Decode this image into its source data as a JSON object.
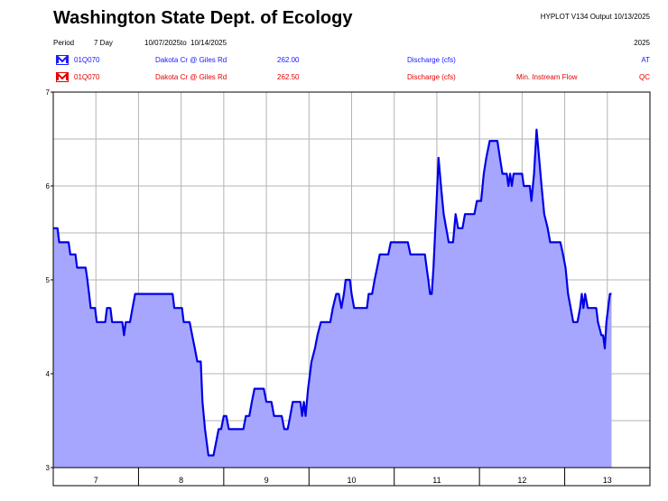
{
  "header": {
    "title": "Washington State Dept. of Ecology",
    "hyplot": "HYPLOT V134  Output 10/13/2025",
    "period_label": "Period",
    "period_value": "7 Day",
    "date_start": "10/07/2025",
    "date_to": "to",
    "date_end": "10/14/2025",
    "year": "2025"
  },
  "series_info": [
    {
      "station": "01Q070",
      "site": "Dakota Cr @ Giles Rd",
      "code": "262.00",
      "param": "Discharge (cfs)",
      "note": "",
      "flag": "AT",
      "color": "#1a1aff"
    },
    {
      "station": "01Q070",
      "site": "Dakota Cr @ Giles Rd",
      "code": "262.50",
      "param": "Discharge (cfs)",
      "note": "Min. Instream Flow",
      "flag": "QC",
      "color": "#e60000"
    }
  ],
  "chart_data": {
    "type": "area",
    "title": "",
    "xlabel": "",
    "ylabel": "",
    "xlim": [
      6.5,
      13.5
    ],
    "ylim": [
      3,
      7
    ],
    "x_ticks": [
      7,
      8,
      9,
      10,
      11,
      12,
      13
    ],
    "x_tick_labels": [
      "7",
      "8",
      "9",
      "10",
      "11",
      "12",
      "13"
    ],
    "y_ticks": [
      3,
      4,
      5,
      6,
      7
    ],
    "y_tick_labels": [
      "3",
      "4",
      "5",
      "6",
      "7"
    ],
    "grid": true,
    "line_color": "#0000e6",
    "fill_color": "#a6a6ff",
    "series": [
      {
        "points": [
          [
            6.5,
            5.55
          ],
          [
            6.55,
            5.55
          ],
          [
            6.57,
            5.4
          ],
          [
            6.68,
            5.4
          ],
          [
            6.7,
            5.27
          ],
          [
            6.76,
            5.27
          ],
          [
            6.78,
            5.13
          ],
          [
            6.88,
            5.13
          ],
          [
            6.9,
            5.0
          ],
          [
            6.92,
            4.85
          ],
          [
            6.94,
            4.7
          ],
          [
            6.99,
            4.7
          ],
          [
            7.01,
            4.55
          ],
          [
            7.11,
            4.55
          ],
          [
            7.13,
            4.7
          ],
          [
            7.17,
            4.7
          ],
          [
            7.19,
            4.55
          ],
          [
            7.31,
            4.55
          ],
          [
            7.33,
            4.41
          ],
          [
            7.35,
            4.55
          ],
          [
            7.4,
            4.55
          ],
          [
            7.43,
            4.7
          ],
          [
            7.46,
            4.85
          ],
          [
            7.9,
            4.85
          ],
          [
            7.92,
            4.7
          ],
          [
            8.01,
            4.7
          ],
          [
            8.03,
            4.55
          ],
          [
            8.1,
            4.55
          ],
          [
            8.13,
            4.41
          ],
          [
            8.16,
            4.27
          ],
          [
            8.19,
            4.13
          ],
          [
            8.23,
            4.13
          ],
          [
            8.25,
            3.7
          ],
          [
            8.28,
            3.41
          ],
          [
            8.3,
            3.27
          ],
          [
            8.32,
            3.13
          ],
          [
            8.38,
            3.13
          ],
          [
            8.41,
            3.27
          ],
          [
            8.44,
            3.41
          ],
          [
            8.47,
            3.41
          ],
          [
            8.5,
            3.55
          ],
          [
            8.53,
            3.55
          ],
          [
            8.56,
            3.41
          ],
          [
            8.73,
            3.41
          ],
          [
            8.76,
            3.55
          ],
          [
            8.8,
            3.55
          ],
          [
            8.83,
            3.7
          ],
          [
            8.86,
            3.84
          ],
          [
            8.97,
            3.84
          ],
          [
            9.0,
            3.7
          ],
          [
            9.06,
            3.7
          ],
          [
            9.09,
            3.55
          ],
          [
            9.18,
            3.55
          ],
          [
            9.21,
            3.41
          ],
          [
            9.25,
            3.41
          ],
          [
            9.28,
            3.55
          ],
          [
            9.31,
            3.7
          ],
          [
            9.4,
            3.7
          ],
          [
            9.42,
            3.55
          ],
          [
            9.44,
            3.7
          ],
          [
            9.46,
            3.55
          ],
          [
            9.49,
            3.84
          ],
          [
            9.53,
            4.13
          ],
          [
            9.57,
            4.27
          ],
          [
            9.6,
            4.41
          ],
          [
            9.64,
            4.55
          ],
          [
            9.75,
            4.55
          ],
          [
            9.78,
            4.7
          ],
          [
            9.82,
            4.85
          ],
          [
            9.85,
            4.85
          ],
          [
            9.88,
            4.7
          ],
          [
            9.91,
            4.85
          ],
          [
            9.93,
            5.0
          ],
          [
            9.98,
            5.0
          ],
          [
            10.0,
            4.85
          ],
          [
            10.03,
            4.7
          ],
          [
            10.18,
            4.7
          ],
          [
            10.2,
            4.85
          ],
          [
            10.24,
            4.85
          ],
          [
            10.27,
            5.0
          ],
          [
            10.3,
            5.13
          ],
          [
            10.33,
            5.27
          ],
          [
            10.43,
            5.27
          ],
          [
            10.46,
            5.4
          ],
          [
            10.66,
            5.4
          ],
          [
            10.69,
            5.27
          ],
          [
            10.86,
            5.27
          ],
          [
            10.88,
            5.13
          ],
          [
            10.9,
            5.0
          ],
          [
            10.92,
            4.85
          ],
          [
            10.94,
            4.85
          ],
          [
            10.96,
            5.13
          ],
          [
            10.99,
            5.7
          ],
          [
            11.02,
            6.3
          ],
          [
            11.05,
            5.98
          ],
          [
            11.08,
            5.7
          ],
          [
            11.11,
            5.55
          ],
          [
            11.14,
            5.4
          ],
          [
            11.19,
            5.4
          ],
          [
            11.22,
            5.7
          ],
          [
            11.25,
            5.55
          ],
          [
            11.3,
            5.55
          ],
          [
            11.33,
            5.7
          ],
          [
            11.44,
            5.7
          ],
          [
            11.47,
            5.84
          ],
          [
            11.52,
            5.84
          ],
          [
            11.55,
            6.13
          ],
          [
            11.58,
            6.3
          ],
          [
            11.62,
            6.48
          ],
          [
            11.71,
            6.48
          ],
          [
            11.74,
            6.3
          ],
          [
            11.77,
            6.13
          ],
          [
            11.82,
            6.13
          ],
          [
            11.84,
            6.0
          ],
          [
            11.86,
            6.13
          ],
          [
            11.88,
            6.0
          ],
          [
            11.9,
            6.13
          ],
          [
            12.0,
            6.13
          ],
          [
            12.02,
            6.0
          ],
          [
            12.09,
            6.0
          ],
          [
            12.11,
            5.84
          ],
          [
            12.14,
            6.13
          ],
          [
            12.17,
            6.6
          ],
          [
            12.2,
            6.3
          ],
          [
            12.23,
            5.98
          ],
          [
            12.26,
            5.7
          ],
          [
            12.3,
            5.55
          ],
          [
            12.33,
            5.4
          ],
          [
            12.45,
            5.4
          ],
          [
            12.48,
            5.27
          ],
          [
            12.51,
            5.13
          ],
          [
            12.54,
            4.85
          ],
          [
            12.57,
            4.7
          ],
          [
            12.6,
            4.55
          ],
          [
            12.65,
            4.55
          ],
          [
            12.68,
            4.7
          ],
          [
            12.7,
            4.85
          ],
          [
            12.72,
            4.7
          ],
          [
            12.74,
            4.85
          ],
          [
            12.77,
            4.7
          ],
          [
            12.87,
            4.7
          ],
          [
            12.89,
            4.55
          ],
          [
            12.93,
            4.41
          ],
          [
            12.95,
            4.41
          ],
          [
            12.97,
            4.27
          ],
          [
            12.99,
            4.55
          ],
          [
            13.01,
            4.7
          ],
          [
            13.03,
            4.85
          ],
          [
            13.05,
            4.85
          ]
        ]
      }
    ]
  }
}
